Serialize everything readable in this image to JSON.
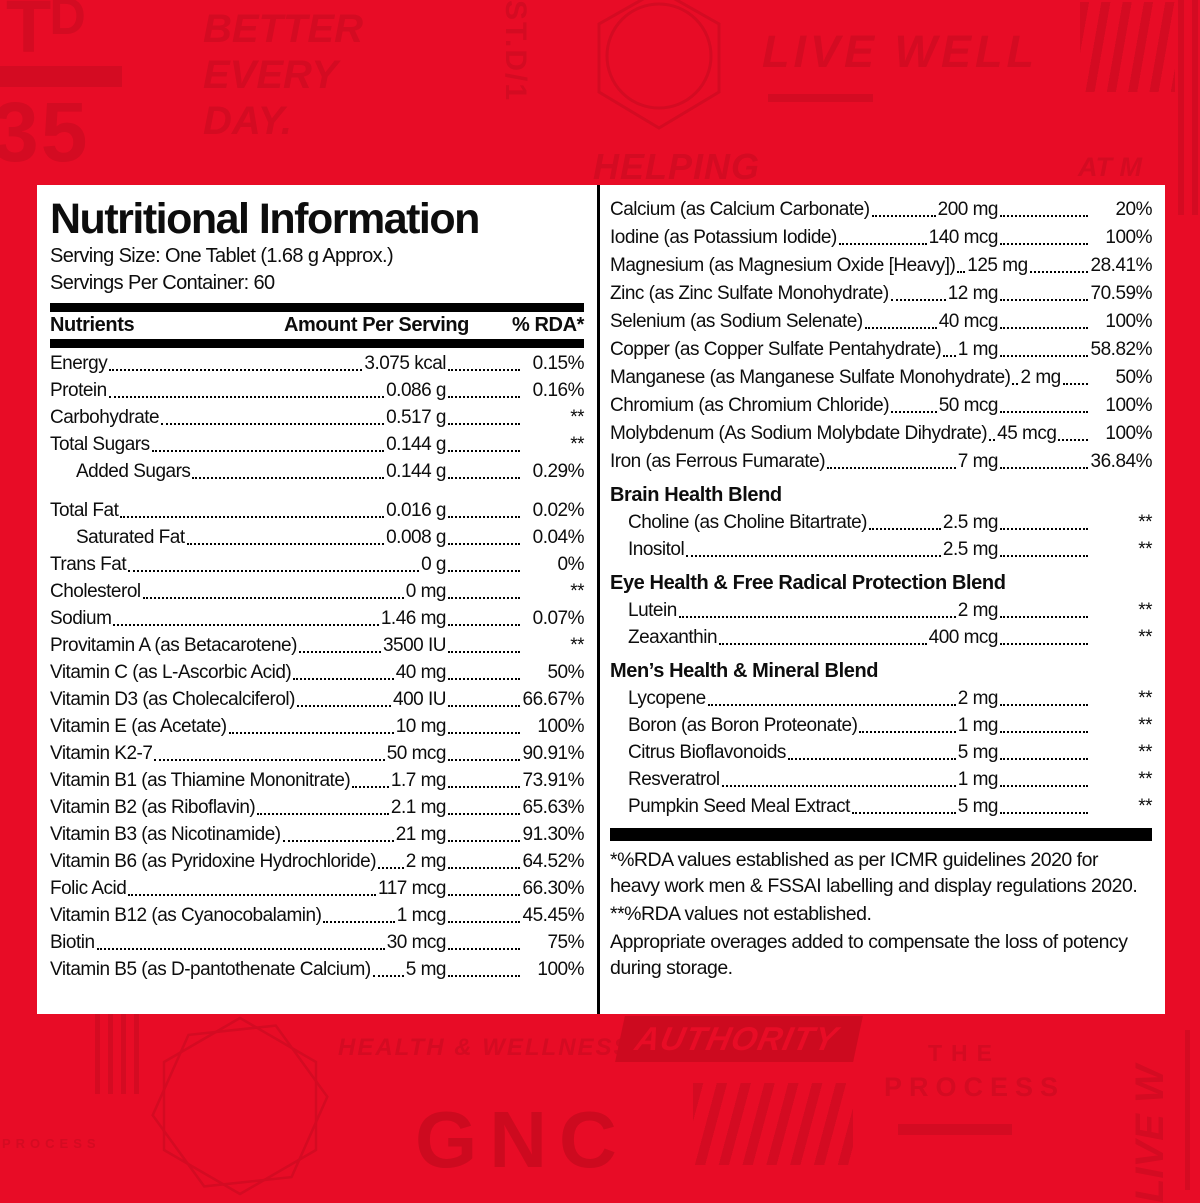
{
  "colors": {
    "background": "#e80c26",
    "watermark": "#d40b22",
    "watermark_strong": "#cd0a1f",
    "panel_background": "#ffffff",
    "text": "#0d0d0d"
  },
  "watermarks": {
    "corner_mark": "Tᴰ",
    "corner_number": "35",
    "vertical_top": "ST.D/1",
    "better_every_day": [
      "BETTER",
      "EVERY",
      "DAY."
    ],
    "live_well": "LIVE WELL",
    "helping": "HELPING",
    "at_my": "AT M",
    "health_wellness": "HEALTH & WELLNESS",
    "authority": "AUTHORITY",
    "the": "THE",
    "process": "PROCESS",
    "process_small": "PROCESS",
    "gnc": "GNC",
    "live_well_vertical": "LIVE W"
  },
  "panel": {
    "title": "Nutritional Information",
    "serving_size": "Serving Size: One Tablet (1.68 g Approx.)",
    "servings_per_container": "Servings Per Container: 60",
    "table_headers": {
      "nutrients": "Nutrients",
      "amount": "Amount Per Serving",
      "rda": "% RDA*"
    },
    "left_rows": [
      {
        "name": "Energy",
        "amount": "3.075 kcal",
        "rda": "0.15%"
      },
      {
        "name": "Protein",
        "amount": "0.086 g",
        "rda": "0.16%"
      },
      {
        "name": "Carbohydrate",
        "amount": "0.517 g",
        "rda": "**"
      },
      {
        "name": "Total Sugars",
        "amount": "0.144 g",
        "rda": "**"
      },
      {
        "name": "Added Sugars",
        "amount": "0.144 g",
        "rda": "0.29%",
        "indent": true
      },
      {
        "name": "Total Fat",
        "amount": "0.016 g",
        "rda": "0.02%",
        "gap": true
      },
      {
        "name": "Saturated Fat",
        "amount": "0.008 g",
        "rda": "0.04%",
        "indent": true
      },
      {
        "name": "Trans Fat",
        "amount": "0 g",
        "rda": "0%"
      },
      {
        "name": "Cholesterol",
        "amount": "0 mg",
        "rda": "**"
      },
      {
        "name": "Sodium",
        "amount": "1.46 mg",
        "rda": "0.07%"
      },
      {
        "name": "Provitamin A (as Betacarotene)",
        "amount": "3500 IU",
        "rda": "**"
      },
      {
        "name": "Vitamin C (as L-Ascorbic Acid)",
        "amount": "40 mg",
        "rda": "50%"
      },
      {
        "name": "Vitamin D3 (as Cholecalciferol)",
        "amount": "400 IU",
        "rda": "66.67%"
      },
      {
        "name": "Vitamin E (as Acetate)",
        "amount": "10 mg",
        "rda": "100%"
      },
      {
        "name": "Vitamin K2-7",
        "amount": "50 mcg",
        "rda": "90.91%"
      },
      {
        "name": "Vitamin B1 (as Thiamine Mononitrate)",
        "amount": "1.7 mg",
        "rda": "73.91%"
      },
      {
        "name": "Vitamin B2 (as Riboflavin)",
        "amount": "2.1 mg",
        "rda": "65.63%"
      },
      {
        "name": "Vitamin B3 (as Nicotinamide)",
        "amount": "21 mg",
        "rda": "91.30%"
      },
      {
        "name": "Vitamin B6 (as Pyridoxine Hydrochloride)",
        "amount": "2 mg",
        "rda": "64.52%"
      },
      {
        "name": "Folic Acid",
        "amount": "117 mcg",
        "rda": "66.30%"
      },
      {
        "name": "Vitamin B12 (as Cyanocobalamin)",
        "amount": "1 mcg",
        "rda": "45.45%"
      },
      {
        "name": "Biotin",
        "amount": "30 mcg",
        "rda": "75%"
      },
      {
        "name": "Vitamin B5 (as D-pantothenate Calcium)",
        "amount": "5 mg",
        "rda": "100%"
      }
    ],
    "right_rows": [
      {
        "name": "Calcium (as Calcium Carbonate)",
        "amount": "200 mg",
        "rda": "20%"
      },
      {
        "name": "Iodine (as Potassium Iodide)",
        "amount": "140 mcg",
        "rda": "100%"
      },
      {
        "name": "Magnesium (as Magnesium Oxide [Heavy])",
        "amount": "125 mg",
        "rda": "28.41%"
      },
      {
        "name": "Zinc (as Zinc Sulfate Monohydrate)",
        "amount": "12 mg",
        "rda": "70.59%"
      },
      {
        "name": "Selenium (as Sodium Selenate)",
        "amount": "40 mcg",
        "rda": "100%"
      },
      {
        "name": "Copper (as Copper Sulfate Pentahydrate)",
        "amount": "1 mg",
        "rda": "58.82%"
      },
      {
        "name": "Manganese (as Manganese Sulfate Monohydrate)",
        "amount": "2 mg",
        "rda": "50%"
      },
      {
        "name": "Chromium (as Chromium Chloride)",
        "amount": "50 mcg",
        "rda": "100%"
      },
      {
        "name": "Molybdenum (As Sodium Molybdate Dihydrate)",
        "amount": "45 mcg",
        "rda": "100%"
      },
      {
        "name": "Iron (as Ferrous Fumarate)",
        "amount": "7 mg",
        "rda": "36.84%"
      }
    ],
    "blends": [
      {
        "title": "Brain Health Blend",
        "rows": [
          {
            "name": "Choline (as Choline Bitartrate)",
            "amount": "2.5 mg",
            "rda": "**"
          },
          {
            "name": "Inositol",
            "amount": "2.5 mg",
            "rda": "**"
          }
        ]
      },
      {
        "title": "Eye Health & Free Radical Protection Blend",
        "rows": [
          {
            "name": "Lutein",
            "amount": "2 mg",
            "rda": "**"
          },
          {
            "name": "Zeaxanthin",
            "amount": "400 mcg",
            "rda": "**"
          }
        ]
      },
      {
        "title": "Men’s Health & Mineral Blend",
        "rows": [
          {
            "name": "Lycopene",
            "amount": "2 mg",
            "rda": "**"
          },
          {
            "name": "Boron (as Boron Proteonate)",
            "amount": "1 mg",
            "rda": "**"
          },
          {
            "name": "Citrus Bioflavonoids",
            "amount": "5 mg",
            "rda": "**"
          },
          {
            "name": "Resveratrol",
            "amount": "1 mg",
            "rda": "**"
          },
          {
            "name": "Pumpkin Seed Meal Extract",
            "amount": "5 mg",
            "rda": "**"
          }
        ]
      }
    ],
    "footnotes": [
      "*%RDA values established as per ICMR guidelines 2020 for heavy work men & FSSAI labelling and display regulations 2020.",
      "**%RDA values not established.",
      "Appropriate overages added to compensate the loss of potency during storage."
    ]
  }
}
